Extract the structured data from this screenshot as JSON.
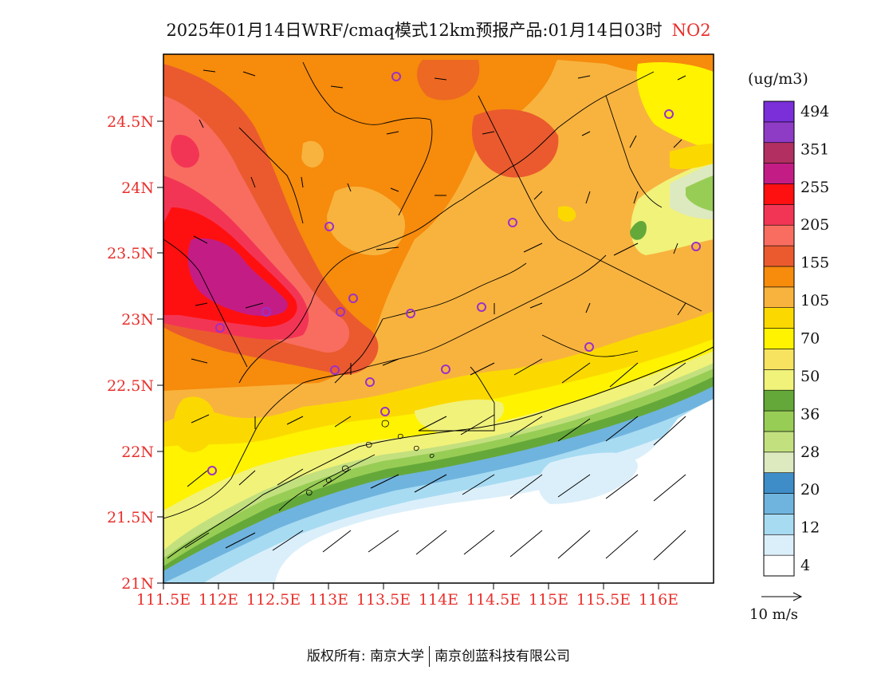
{
  "title": {
    "main": "2025年01月14日WRF/cmaq模式12km预报产品:01月14日03时",
    "pollutant": "NO2"
  },
  "axes": {
    "x_ticks": [
      "111.5E",
      "112E",
      "112.5E",
      "113E",
      "113.5E",
      "114E",
      "114.5E",
      "115E",
      "115.5E",
      "116E"
    ],
    "y_ticks": [
      "21N",
      "21.5N",
      "22N",
      "22.5N",
      "23N",
      "23.5N",
      "24N",
      "24.5N"
    ]
  },
  "colorbar": {
    "unit": "(ug/m3)",
    "labels": [
      "4",
      "12",
      "20",
      "28",
      "36",
      "50",
      "70",
      "105",
      "155",
      "205",
      "255",
      "351",
      "494"
    ],
    "colors": [
      "#ffffff",
      "#dbeffa",
      "#a7dbf2",
      "#6fb4de",
      "#3f8dc8",
      "#dde9bf",
      "#c3e07f",
      "#98cd55",
      "#65a83a",
      "#f1f27a",
      "#f7e35f",
      "#fff300",
      "#fbd900",
      "#f8b33e",
      "#f68b0c",
      "#ea5a2e",
      "#f86d60",
      "#f33555",
      "#ff1010",
      "#c31d85",
      "#b23061",
      "#8e3bc5",
      "#7a2fd9"
    ]
  },
  "vector_reference": {
    "label": "10 m/s"
  },
  "footer": {
    "copyright": "版权所有: 南京大学",
    "company": "南京创蓝科技有限公司"
  }
}
